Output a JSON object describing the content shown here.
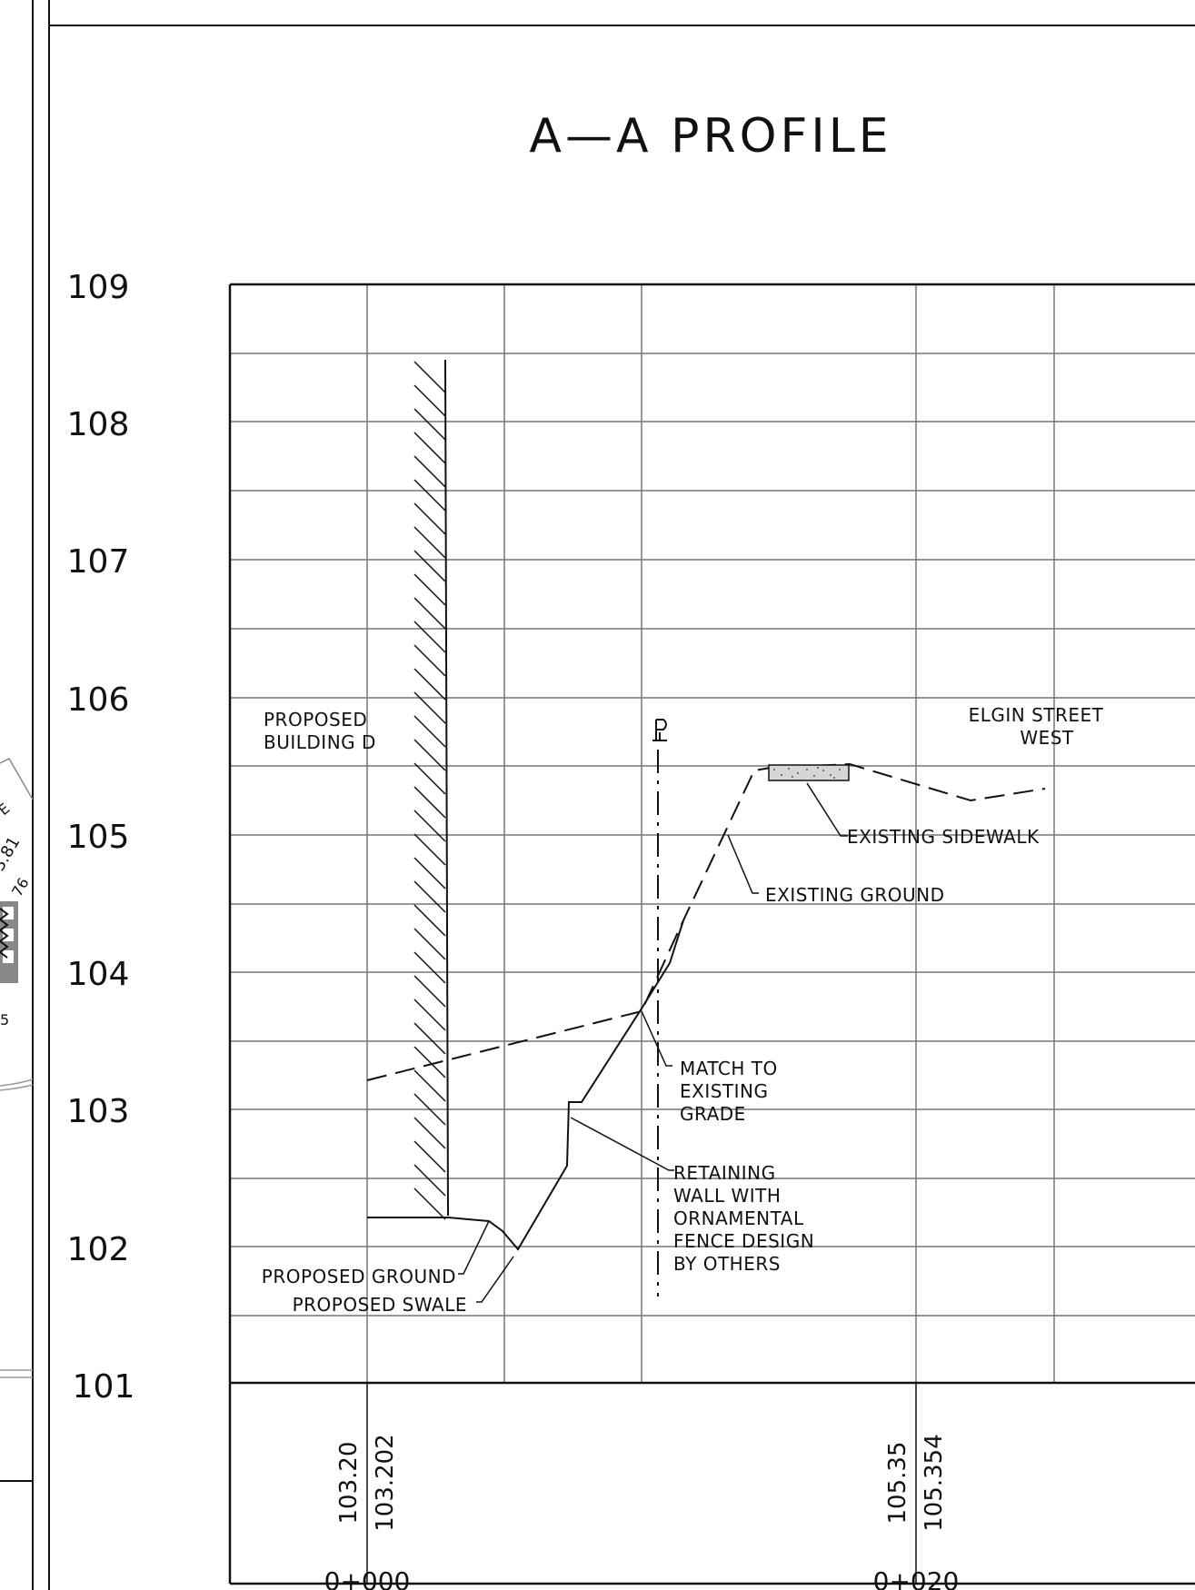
{
  "title": "A—A PROFILE",
  "elevations": [
    "109",
    "108",
    "107",
    "106",
    "105",
    "104",
    "103",
    "102",
    "101"
  ],
  "stations": [
    "0+000",
    "0+020"
  ],
  "data_table": {
    "left": {
      "existing": "103.20",
      "proposed": "103.202"
    },
    "right": {
      "existing": "105.35",
      "proposed": "105.354"
    }
  },
  "labels": {
    "building": [
      "PROPOSED",
      "BUILDING D"
    ],
    "street": [
      "ELGIN STREET",
      "WEST"
    ],
    "pl": "PL",
    "sidewalk": "EXISTING SIDEWALK",
    "existing_ground": "EXISTING GROUND",
    "match": [
      "MATCH TO",
      "EXISTING",
      "GRADE"
    ],
    "retaining": [
      "RETAINING",
      "WALL WITH",
      "ORNAMENTAL",
      "FENCE DESIGN",
      "BY OTHERS"
    ],
    "proposed_ground": "PROPOSED GROUND",
    "proposed_swale": "PROPOSED SWALE"
  },
  "edge_fragments": [
    "E",
    "3.81",
    "76",
    "5"
  ],
  "colors": {
    "line": "#111111",
    "grid": "#777777"
  }
}
